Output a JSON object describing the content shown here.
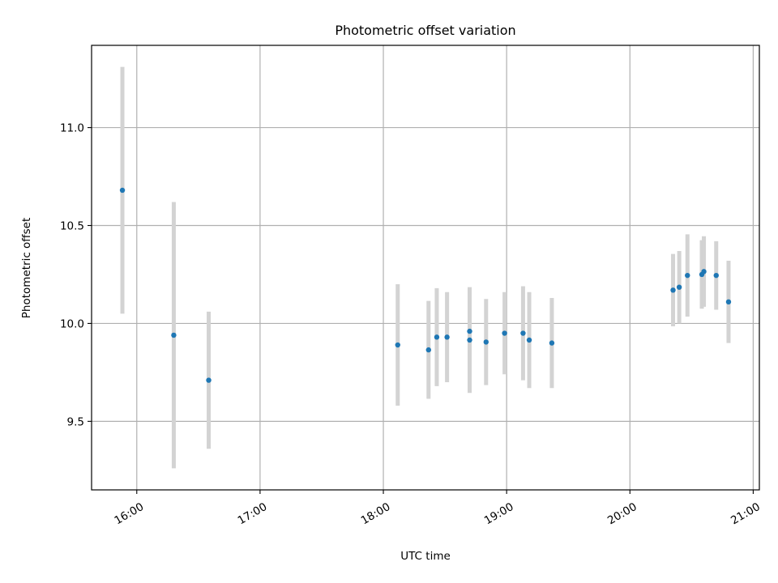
{
  "chart_data": {
    "type": "scatter",
    "title": "Photometric offset variation",
    "xlabel": "UTC time",
    "ylabel": "Photometric offset",
    "x_ticks": [
      "16:00",
      "17:00",
      "18:00",
      "19:00",
      "20:00",
      "21:00"
    ],
    "y_ticks": [
      "9.5",
      "10.0",
      "10.5",
      "11.0"
    ],
    "xlim": [
      "15:38",
      "21:03"
    ],
    "ylim": [
      9.15,
      11.42
    ],
    "grid": true,
    "series": [
      {
        "marker_color": "#1f77b4",
        "errorbar_color": "#d3d3d3",
        "points": [
          {
            "x": "15:53",
            "y": 10.68,
            "err": 0.63
          },
          {
            "x": "16:18",
            "y": 9.94,
            "err": 0.68
          },
          {
            "x": "16:35",
            "y": 9.71,
            "err": 0.35
          },
          {
            "x": "18:07",
            "y": 9.89,
            "err": 0.31
          },
          {
            "x": "18:22",
            "y": 9.865,
            "err": 0.25
          },
          {
            "x": "18:26",
            "y": 9.93,
            "err": 0.25
          },
          {
            "x": "18:31",
            "y": 9.93,
            "err": 0.23
          },
          {
            "x": "18:42",
            "y": 9.915,
            "err": 0.27
          },
          {
            "x": "18:42",
            "y": 9.96,
            "err": 0.22
          },
          {
            "x": "18:50",
            "y": 9.905,
            "err": 0.22
          },
          {
            "x": "18:59",
            "y": 9.95,
            "err": 0.21
          },
          {
            "x": "19:08",
            "y": 9.95,
            "err": 0.24
          },
          {
            "x": "19:11",
            "y": 9.915,
            "err": 0.245
          },
          {
            "x": "19:22",
            "y": 9.9,
            "err": 0.23
          },
          {
            "x": "20:21",
            "y": 10.17,
            "err": 0.185
          },
          {
            "x": "20:24",
            "y": 10.185,
            "err": 0.185
          },
          {
            "x": "20:28",
            "y": 10.245,
            "err": 0.21
          },
          {
            "x": "20:35",
            "y": 10.25,
            "err": 0.175
          },
          {
            "x": "20:36",
            "y": 10.265,
            "err": 0.18
          },
          {
            "x": "20:42",
            "y": 10.245,
            "err": 0.175
          },
          {
            "x": "20:48",
            "y": 10.11,
            "err": 0.21
          }
        ]
      }
    ]
  }
}
